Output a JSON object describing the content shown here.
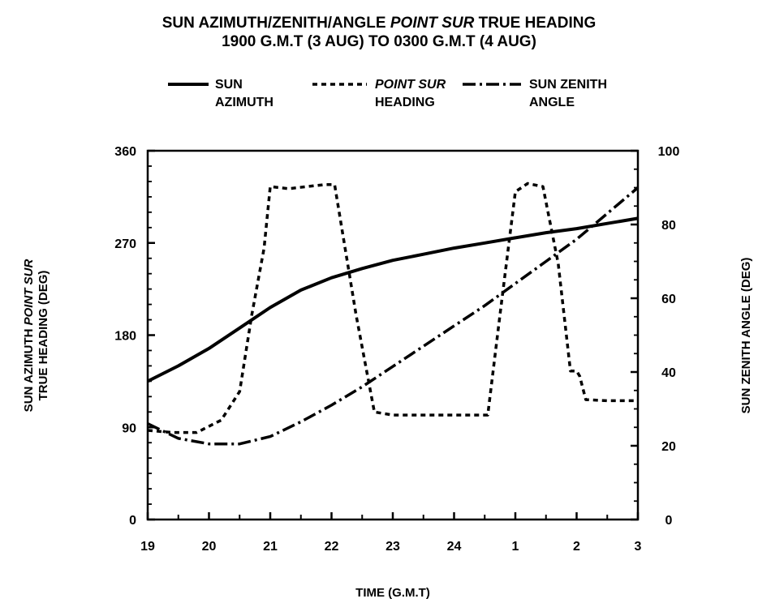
{
  "chart_data": {
    "type": "line",
    "title": {
      "line1": {
        "pre": "SUN AZIMUTH/ZENITH/ANGLE ",
        "ital": "POINT SUR",
        "post": " TRUE HEADING"
      },
      "line2": "1900 G.M.T (3 AUG) TO 0300 G.M.T (4 AUG)"
    },
    "xlabel": "TIME (G.M.T)",
    "ylabel_left": {
      "line1_pre": "SUN AZIMUTH ",
      "line1_ital": "POINT SUR",
      "line2": "TRUE HEADING (DEG)"
    },
    "ylabel_right": "SUN ZENITH ANGLE (DEG)",
    "x_ticks": [
      "19",
      "20",
      "21",
      "22",
      "23",
      "24",
      "1",
      "2",
      "3"
    ],
    "xlim": [
      19,
      27
    ],
    "ylim_left": [
      0,
      360
    ],
    "ylim_right": [
      0,
      100
    ],
    "y_ticks_left": [
      0,
      90,
      180,
      270,
      360
    ],
    "y_ticks_right": [
      0,
      20,
      40,
      60,
      80,
      100
    ],
    "legend_position": "top",
    "legend": [
      {
        "id": "azimuth",
        "line1": "SUN",
        "line2": "AZIMUTH",
        "style": "solid"
      },
      {
        "id": "heading",
        "line1": "POINT SUR",
        "line2": "HEADING",
        "style": "dashed",
        "italic_line1": true
      },
      {
        "id": "zenith",
        "line1": "SUN ZENITH",
        "line2": "ANGLE",
        "style": "dashdot"
      }
    ],
    "series": [
      {
        "id": "azimuth",
        "axis": "left",
        "x": [
          19,
          19.5,
          20,
          20.5,
          21,
          21.5,
          22,
          22.5,
          23,
          23.5,
          24,
          24.5,
          25,
          25.5,
          26,
          26.5,
          27
        ],
        "y": [
          135,
          150,
          167,
          187,
          207,
          224,
          236,
          245,
          253,
          259,
          265,
          270,
          275,
          280,
          284,
          289,
          294
        ]
      },
      {
        "id": "heading",
        "axis": "left",
        "x": [
          19,
          19.4,
          19.8,
          20.2,
          20.5,
          20.7,
          20.9,
          21,
          21.3,
          21.6,
          21.9,
          22.05,
          22.4,
          22.7,
          23,
          23.5,
          24,
          24.55,
          24.75,
          25,
          25.2,
          25.45,
          25.7,
          25.9,
          26,
          26.05,
          26.15,
          26.5,
          27
        ],
        "y": [
          87,
          85,
          85,
          97,
          125,
          200,
          265,
          325,
          323,
          325,
          327,
          327,
          200,
          105,
          102,
          102,
          102,
          102,
          200,
          320,
          328,
          325,
          250,
          145,
          145,
          140,
          117,
          116,
          116
        ]
      },
      {
        "id": "zenith",
        "axis": "right",
        "x": [
          19,
          19.5,
          20,
          20.5,
          21,
          21.5,
          22,
          22.5,
          23,
          23.5,
          24,
          24.5,
          25,
          25.5,
          26,
          26.5,
          27
        ],
        "y": [
          26,
          22,
          20.5,
          20.5,
          22.5,
          26.5,
          31,
          36,
          41.5,
          47,
          52.5,
          58,
          64,
          70,
          76,
          83,
          90
        ]
      }
    ]
  }
}
